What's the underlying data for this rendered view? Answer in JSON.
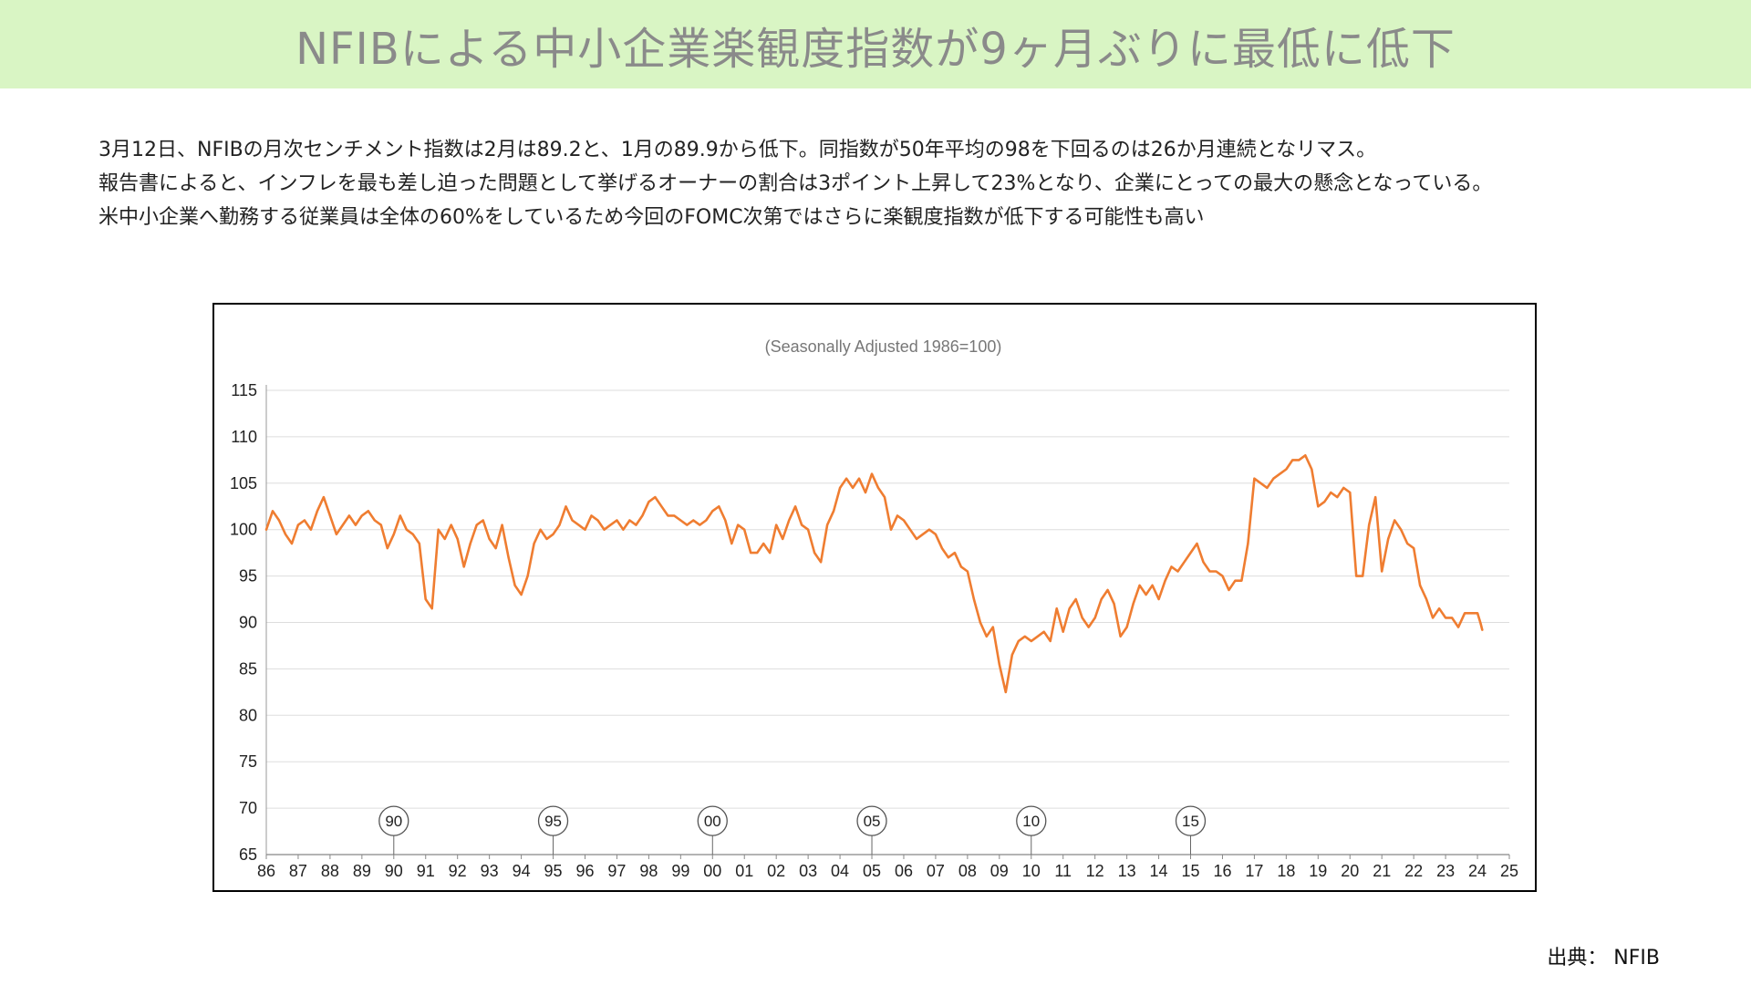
{
  "header": {
    "title": "NFIBによる中小企業楽観度指数が9ヶ月ぶりに最低に低下"
  },
  "body": {
    "lines": [
      "3月12日、NFIBの月次センチメント指数は2月は89.2と、1月の89.9から低下。同指数が50年平均の98を下回るのは26か月連続となリマス。",
      "報告書によると、インフレを最も差し迫った問題として挙げるオーナーの割合は3ポイント上昇して23%となり、企業にとっての最大の懸念となっている。",
      "米中小企業へ勤務する従業員は全体の60%をしているため今回のFOMC次第ではさらに楽観度指数が低下する可能性も高い"
    ]
  },
  "source": {
    "label": "出典： NFIB"
  },
  "colors": {
    "line": "#ef7d31",
    "header_bg": "#d9f5c4",
    "grid": "#dddddd"
  },
  "chart_data": {
    "type": "line",
    "subtitle": "(Seasonally Adjusted 1986=100)",
    "title": "",
    "xlabel": "",
    "ylabel": "",
    "ylim": [
      65,
      115
    ],
    "yticks": [
      115,
      110,
      105,
      100,
      95,
      90,
      85,
      80,
      75,
      70,
      65
    ],
    "xlim": [
      1986,
      2025
    ],
    "xtick_labels": [
      "86",
      "87",
      "88",
      "89",
      "90",
      "91",
      "92",
      "93",
      "94",
      "95",
      "96",
      "97",
      "98",
      "99",
      "00",
      "01",
      "02",
      "03",
      "04",
      "05",
      "06",
      "07",
      "08",
      "09",
      "10",
      "11",
      "12",
      "13",
      "14",
      "15",
      "16",
      "17",
      "18",
      "19",
      "20",
      "21",
      "22",
      "23",
      "24",
      "25"
    ],
    "year_markers": [
      {
        "year": 1990,
        "label": "90"
      },
      {
        "year": 1995,
        "label": "95"
      },
      {
        "year": 2000,
        "label": "00"
      },
      {
        "year": 2005,
        "label": "05"
      },
      {
        "year": 2010,
        "label": "10"
      },
      {
        "year": 2015,
        "label": "15"
      }
    ],
    "grid": true,
    "legend": "none",
    "series": [
      {
        "values": [
          [
            1986.0,
            100.0
          ],
          [
            1986.2,
            102.0
          ],
          [
            1986.4,
            101.0
          ],
          [
            1986.6,
            99.5
          ],
          [
            1986.8,
            98.5
          ],
          [
            1987.0,
            100.5
          ],
          [
            1987.2,
            101.0
          ],
          [
            1987.4,
            100.0
          ],
          [
            1987.6,
            102.0
          ],
          [
            1987.8,
            103.5
          ],
          [
            1988.0,
            101.5
          ],
          [
            1988.2,
            99.5
          ],
          [
            1988.4,
            100.5
          ],
          [
            1988.6,
            101.5
          ],
          [
            1988.8,
            100.5
          ],
          [
            1989.0,
            101.5
          ],
          [
            1989.2,
            102.0
          ],
          [
            1989.4,
            101.0
          ],
          [
            1989.6,
            100.5
          ],
          [
            1989.8,
            98.0
          ],
          [
            1990.0,
            99.5
          ],
          [
            1990.2,
            101.5
          ],
          [
            1990.4,
            100.0
          ],
          [
            1990.6,
            99.5
          ],
          [
            1990.8,
            98.5
          ],
          [
            1991.0,
            92.5
          ],
          [
            1991.2,
            91.5
          ],
          [
            1991.4,
            100.0
          ],
          [
            1991.6,
            99.0
          ],
          [
            1991.8,
            100.5
          ],
          [
            1992.0,
            99.0
          ],
          [
            1992.2,
            96.0
          ],
          [
            1992.4,
            98.5
          ],
          [
            1992.6,
            100.5
          ],
          [
            1992.8,
            101.0
          ],
          [
            1993.0,
            99.0
          ],
          [
            1993.2,
            98.0
          ],
          [
            1993.4,
            100.5
          ],
          [
            1993.6,
            97.0
          ],
          [
            1993.8,
            94.0
          ],
          [
            1994.0,
            93.0
          ],
          [
            1994.2,
            95.0
          ],
          [
            1994.4,
            98.5
          ],
          [
            1994.6,
            100.0
          ],
          [
            1994.8,
            99.0
          ],
          [
            1995.0,
            99.5
          ],
          [
            1995.2,
            100.5
          ],
          [
            1995.4,
            102.5
          ],
          [
            1995.6,
            101.0
          ],
          [
            1995.8,
            100.5
          ],
          [
            1996.0,
            100.0
          ],
          [
            1996.2,
            101.5
          ],
          [
            1996.4,
            101.0
          ],
          [
            1996.6,
            100.0
          ],
          [
            1996.8,
            100.5
          ],
          [
            1997.0,
            101.0
          ],
          [
            1997.2,
            100.0
          ],
          [
            1997.4,
            101.0
          ],
          [
            1997.6,
            100.5
          ],
          [
            1997.8,
            101.5
          ],
          [
            1998.0,
            103.0
          ],
          [
            1998.2,
            103.5
          ],
          [
            1998.4,
            102.5
          ],
          [
            1998.6,
            101.5
          ],
          [
            1998.8,
            101.5
          ],
          [
            1999.0,
            101.0
          ],
          [
            1999.2,
            100.5
          ],
          [
            1999.4,
            101.0
          ],
          [
            1999.6,
            100.5
          ],
          [
            1999.8,
            101.0
          ],
          [
            2000.0,
            102.0
          ],
          [
            2000.2,
            102.5
          ],
          [
            2000.4,
            101.0
          ],
          [
            2000.6,
            98.5
          ],
          [
            2000.8,
            100.5
          ],
          [
            2001.0,
            100.0
          ],
          [
            2001.2,
            97.5
          ],
          [
            2001.4,
            97.5
          ],
          [
            2001.6,
            98.5
          ],
          [
            2001.8,
            97.5
          ],
          [
            2002.0,
            100.5
          ],
          [
            2002.2,
            99.0
          ],
          [
            2002.4,
            101.0
          ],
          [
            2002.6,
            102.5
          ],
          [
            2002.8,
            100.5
          ],
          [
            2003.0,
            100.0
          ],
          [
            2003.2,
            97.5
          ],
          [
            2003.4,
            96.5
          ],
          [
            2003.6,
            100.5
          ],
          [
            2003.8,
            102.0
          ],
          [
            2004.0,
            104.5
          ],
          [
            2004.2,
            105.5
          ],
          [
            2004.4,
            104.5
          ],
          [
            2004.6,
            105.5
          ],
          [
            2004.8,
            104.0
          ],
          [
            2005.0,
            106.0
          ],
          [
            2005.2,
            104.5
          ],
          [
            2005.4,
            103.5
          ],
          [
            2005.6,
            100.0
          ],
          [
            2005.8,
            101.5
          ],
          [
            2006.0,
            101.0
          ],
          [
            2006.2,
            100.0
          ],
          [
            2006.4,
            99.0
          ],
          [
            2006.6,
            99.5
          ],
          [
            2006.8,
            100.0
          ],
          [
            2007.0,
            99.5
          ],
          [
            2007.2,
            98.0
          ],
          [
            2007.4,
            97.0
          ],
          [
            2007.6,
            97.5
          ],
          [
            2007.8,
            96.0
          ],
          [
            2008.0,
            95.5
          ],
          [
            2008.2,
            92.5
          ],
          [
            2008.4,
            90.0
          ],
          [
            2008.6,
            88.5
          ],
          [
            2008.8,
            89.5
          ],
          [
            2009.0,
            85.5
          ],
          [
            2009.2,
            82.5
          ],
          [
            2009.4,
            86.5
          ],
          [
            2009.6,
            88.0
          ],
          [
            2009.8,
            88.5
          ],
          [
            2010.0,
            88.0
          ],
          [
            2010.2,
            88.5
          ],
          [
            2010.4,
            89.0
          ],
          [
            2010.6,
            88.0
          ],
          [
            2010.8,
            91.5
          ],
          [
            2011.0,
            89.0
          ],
          [
            2011.2,
            91.5
          ],
          [
            2011.4,
            92.5
          ],
          [
            2011.6,
            90.5
          ],
          [
            2011.8,
            89.5
          ],
          [
            2012.0,
            90.5
          ],
          [
            2012.2,
            92.5
          ],
          [
            2012.4,
            93.5
          ],
          [
            2012.6,
            92.0
          ],
          [
            2012.8,
            88.5
          ],
          [
            2013.0,
            89.5
          ],
          [
            2013.2,
            92.0
          ],
          [
            2013.4,
            94.0
          ],
          [
            2013.6,
            93.0
          ],
          [
            2013.8,
            94.0
          ],
          [
            2014.0,
            92.5
          ],
          [
            2014.2,
            94.5
          ],
          [
            2014.4,
            96.0
          ],
          [
            2014.6,
            95.5
          ],
          [
            2014.8,
            96.5
          ],
          [
            2015.0,
            97.5
          ],
          [
            2015.2,
            98.5
          ],
          [
            2015.4,
            96.5
          ],
          [
            2015.6,
            95.5
          ],
          [
            2015.8,
            95.5
          ],
          [
            2016.0,
            95.0
          ],
          [
            2016.2,
            93.5
          ],
          [
            2016.4,
            94.5
          ],
          [
            2016.6,
            94.5
          ],
          [
            2016.8,
            98.5
          ],
          [
            2017.0,
            105.5
          ],
          [
            2017.2,
            105.0
          ],
          [
            2017.4,
            104.5
          ],
          [
            2017.6,
            105.5
          ],
          [
            2017.8,
            106.0
          ],
          [
            2018.0,
            106.5
          ],
          [
            2018.2,
            107.5
          ],
          [
            2018.4,
            107.5
          ],
          [
            2018.6,
            108.0
          ],
          [
            2018.8,
            106.5
          ],
          [
            2019.0,
            102.5
          ],
          [
            2019.2,
            103.0
          ],
          [
            2019.4,
            104.0
          ],
          [
            2019.6,
            103.5
          ],
          [
            2019.8,
            104.5
          ],
          [
            2020.0,
            104.0
          ],
          [
            2020.2,
            95.0
          ],
          [
            2020.4,
            95.0
          ],
          [
            2020.6,
            100.5
          ],
          [
            2020.8,
            103.5
          ],
          [
            2021.0,
            95.5
          ],
          [
            2021.2,
            99.0
          ],
          [
            2021.4,
            101.0
          ],
          [
            2021.6,
            100.0
          ],
          [
            2021.8,
            98.5
          ],
          [
            2022.0,
            98.0
          ],
          [
            2022.2,
            94.0
          ],
          [
            2022.4,
            92.5
          ],
          [
            2022.6,
            90.5
          ],
          [
            2022.8,
            91.5
          ],
          [
            2023.0,
            90.5
          ],
          [
            2023.2,
            90.5
          ],
          [
            2023.4,
            89.5
          ],
          [
            2023.6,
            91.0
          ],
          [
            2023.8,
            91.0
          ],
          [
            2024.0,
            91.0
          ],
          [
            2024.1,
            89.9
          ],
          [
            2024.15,
            89.2
          ]
        ]
      }
    ]
  }
}
